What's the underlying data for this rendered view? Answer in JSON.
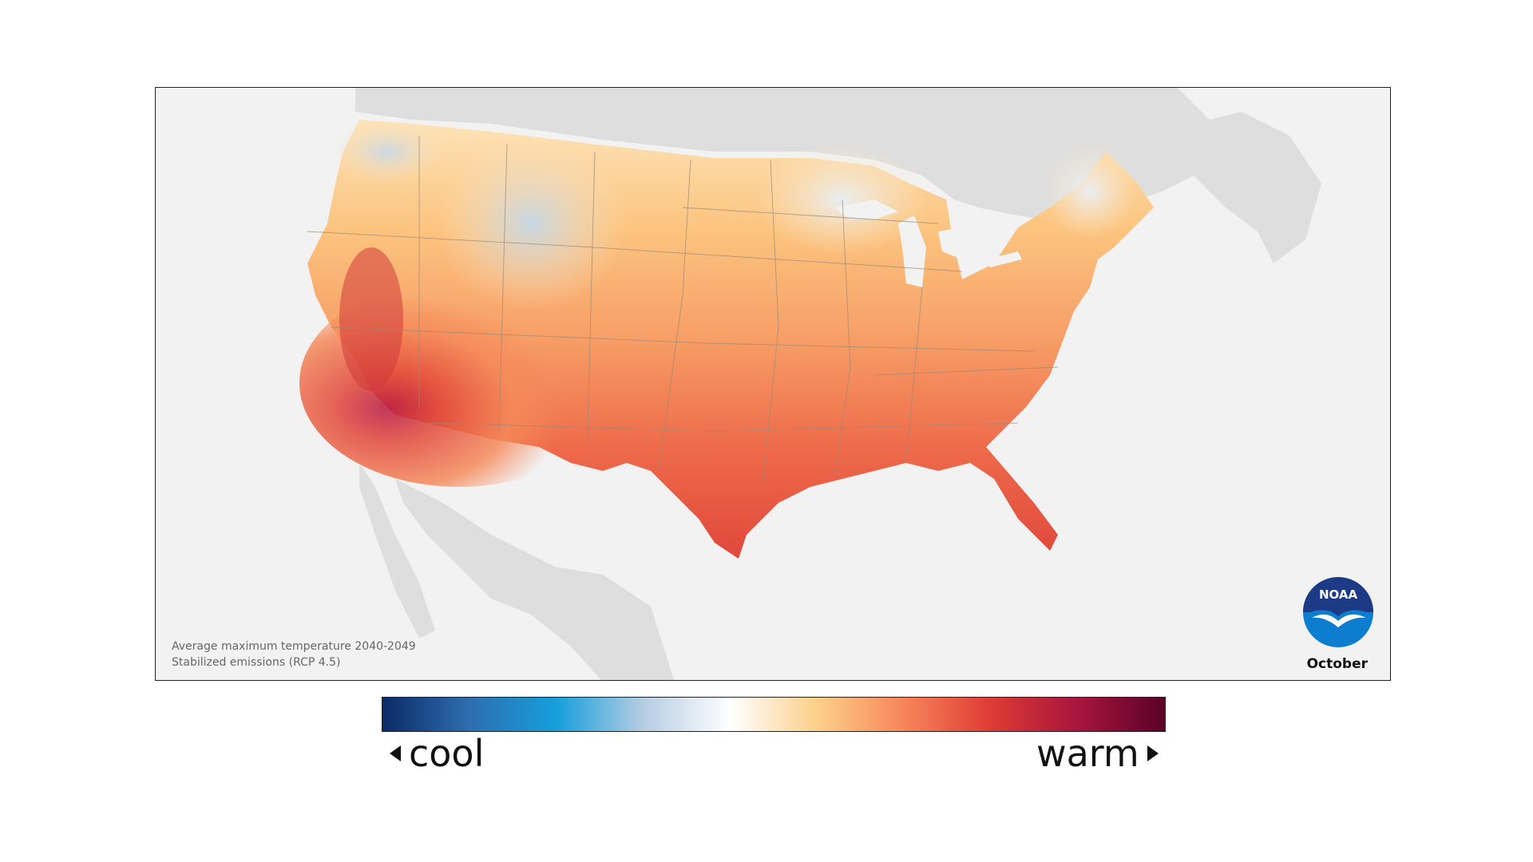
{
  "caption": {
    "line1": "Average maximum temperature 2040-2049",
    "line2": "Stabilized emissions (RCP 4.5)"
  },
  "month": "October",
  "logo": {
    "text": "NOAA",
    "colors": {
      "top": "#1d3a87",
      "bottom": "#0d7ecf",
      "bird": "#ffffff"
    }
  },
  "colorbar": {
    "low_label": "cool",
    "high_label": "warm",
    "stops": [
      "#0a2a66",
      "#2e6eb0",
      "#169fdb",
      "#b6cde3",
      "#ffffff",
      "#fdd08a",
      "#f8855a",
      "#de3b34",
      "#a8153e",
      "#5a0228"
    ]
  },
  "colors": {
    "land_outside": "#dcdcdc",
    "ocean": "#f2f2f2",
    "border": "#9a8a7a"
  }
}
